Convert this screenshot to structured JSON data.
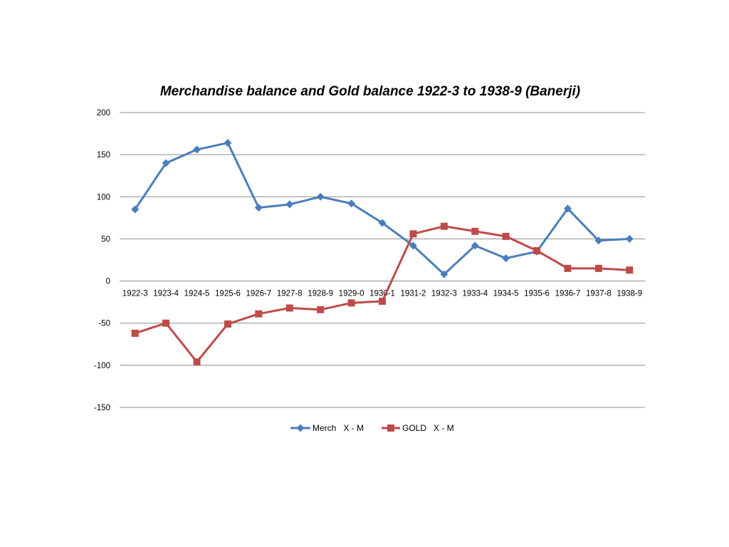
{
  "chart_data": {
    "type": "line",
    "title": "Merchandise balance and Gold balance 1922-3 to 1938-9  (Banerji)",
    "xlabel": "",
    "ylabel": "",
    "categories": [
      "1922-3",
      "1923-4",
      "1924-5",
      "1925-6",
      "1926-7",
      "1927-8",
      "1928-9",
      "1929-0",
      "1930-1",
      "1931-2",
      "1932-3",
      "1933-4",
      "1934-5",
      "1935-6",
      "1936-7",
      "1937-8",
      "1938-9"
    ],
    "ylim": [
      -150,
      200
    ],
    "yticks": [
      200,
      150,
      100,
      50,
      0,
      -50,
      -100,
      -150
    ],
    "grid": true,
    "legend_position": "bottom",
    "series": [
      {
        "name": "Merch   X - M",
        "color": "#4a7ebb",
        "marker": "diamond",
        "values": [
          85,
          140,
          156,
          164,
          87,
          91,
          100,
          92,
          69,
          42,
          8,
          42,
          27,
          35,
          86,
          48,
          50
        ]
      },
      {
        "name": "GOLD   X - M",
        "color": "#be4b48",
        "marker": "square",
        "values": [
          -62,
          -50,
          -96,
          -51,
          -39,
          -32,
          -34,
          -26,
          -24,
          56,
          65,
          59,
          53,
          36,
          15,
          15,
          13
        ]
      }
    ]
  }
}
